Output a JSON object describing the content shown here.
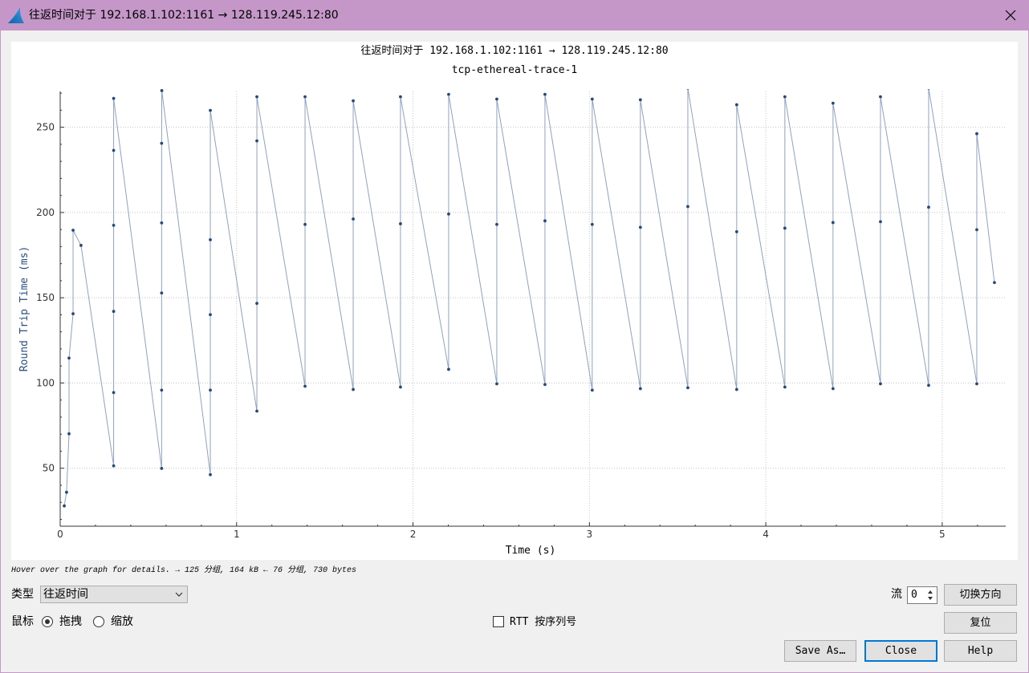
{
  "window": {
    "title": "往返时间对于 192.168.1.102:1161 → 128.119.245.12:80",
    "icon": "wireshark-fin-icon",
    "close_icon": "close-icon",
    "titlebar_color": "#c497c8"
  },
  "chart_data": {
    "type": "line",
    "title": "往返时间对于 192.168.1.102:1161 → 128.119.245.12:80",
    "subtitle": "tcp-ethereal-trace-1",
    "xlabel": "Time (s)",
    "ylabel": "Round Trip Time (ms)",
    "xlim": [
      0,
      5.36
    ],
    "ylim": [
      16,
      271
    ],
    "x_ticks": [
      0,
      1,
      2,
      3,
      4,
      5
    ],
    "y_ticks": [
      50,
      100,
      150,
      200,
      250
    ],
    "minor_step": {
      "x": 0.2,
      "y": 10
    },
    "grid": true,
    "markers": true,
    "series": [
      {
        "color": "#244a7c",
        "line_color": "#8ea2c2",
        "x": [
          0.023,
          0.036,
          0.05,
          0.05,
          0.073,
          0.073,
          0.118,
          0.303,
          0.303,
          0.303,
          0.303,
          0.303,
          0.303,
          0.575,
          0.575,
          0.575,
          0.575,
          0.575,
          0.576,
          0.851,
          0.851,
          0.851,
          0.851,
          0.851,
          1.115,
          1.115,
          1.115,
          1.115,
          1.388,
          1.388,
          1.388,
          1.661,
          1.661,
          1.661,
          1.929,
          1.929,
          1.929,
          2.202,
          2.202,
          2.202,
          2.475,
          2.475,
          2.475,
          2.748,
          2.748,
          2.748,
          3.016,
          3.016,
          3.016,
          3.289,
          3.289,
          3.289,
          3.558,
          3.558,
          3.558,
          3.835,
          3.835,
          3.835,
          4.108,
          4.108,
          4.108,
          4.381,
          4.381,
          4.381,
          4.65,
          4.65,
          4.65,
          4.923,
          4.923,
          4.923,
          5.196,
          5.196,
          5.196,
          5.296
        ],
        "y": [
          27.9,
          35.9,
          70.2,
          114.6,
          140.6,
          189.6,
          180.7,
          51.4,
          94.4,
          142.0,
          192.5,
          236.4,
          266.9,
          49.9,
          95.8,
          152.8,
          193.9,
          240.6,
          271.5,
          46.2,
          95.8,
          140.1,
          184.0,
          259.9,
          83.5,
          146.7,
          242.0,
          267.9,
          98.1,
          193.0,
          267.9,
          96.2,
          196.2,
          265.5,
          97.6,
          193.4,
          267.9,
          108.0,
          199.1,
          269.3,
          99.5,
          193.0,
          266.5,
          99.1,
          195.1,
          269.3,
          95.8,
          193.0,
          266.5,
          96.7,
          191.3,
          266.1,
          97.2,
          203.5,
          273,
          96.2,
          188.7,
          263.2,
          97.6,
          190.8,
          267.9,
          96.7,
          194.1,
          264.1,
          99.5,
          194.6,
          267.9,
          98.6,
          203.1,
          273,
          99.5,
          189.9,
          246.2,
          158.9
        ]
      }
    ]
  },
  "status": {
    "hint": "Hover over the graph for details. → 125 分组, 164 kB ← 76 分组, 730 bytes"
  },
  "controls": {
    "type_label": "类型",
    "type_value": "往返时间",
    "stream_label": "流",
    "stream_value": "0",
    "switch_direction_label": "切换方向",
    "mouse_label": "鼠标",
    "mouse_modes": [
      {
        "label": "拖拽",
        "selected": true
      },
      {
        "label": "缩放",
        "selected": false
      }
    ],
    "rtt_by_seq": {
      "label": "RTT 按序列号",
      "checked": false
    },
    "reset_label": "复位",
    "save_as_label": "Save As…",
    "close_label": "Close",
    "help_label": "Help",
    "default_button_color": "#0078d7"
  }
}
